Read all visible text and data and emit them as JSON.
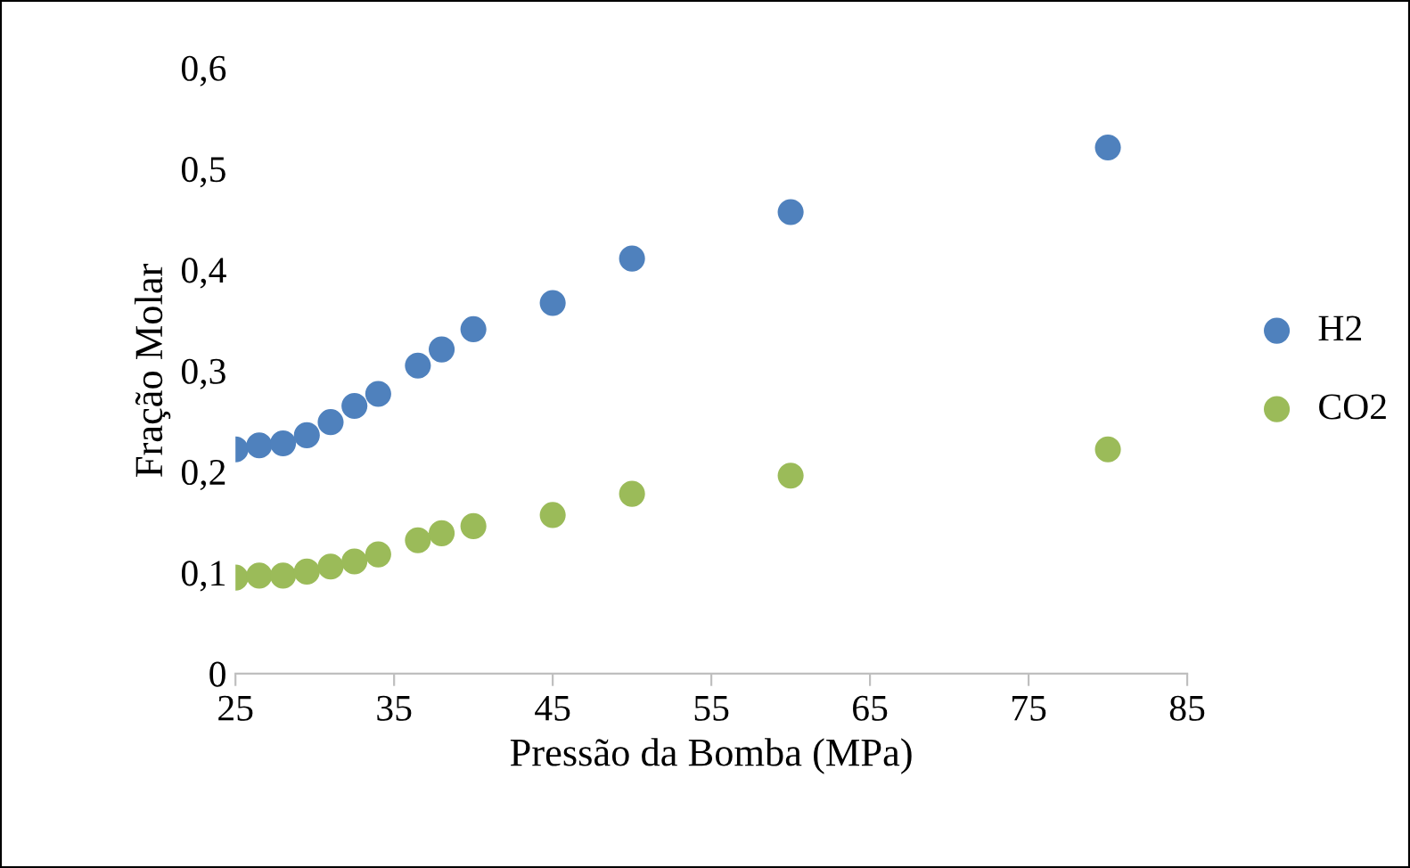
{
  "chart_data": {
    "type": "scatter",
    "xlabel": "Pressão da Bomba (MPa)",
    "ylabel": "Fração Molar",
    "x": [
      25,
      26.5,
      28,
      29.5,
      31,
      32.5,
      34,
      36.5,
      38,
      40,
      45,
      50,
      60,
      80
    ],
    "series": [
      {
        "name": "H2",
        "color": "#4f81bd",
        "values": [
          0.222,
          0.226,
          0.228,
          0.236,
          0.249,
          0.265,
          0.277,
          0.305,
          0.321,
          0.341,
          0.367,
          0.411,
          0.457,
          0.521
        ]
      },
      {
        "name": "CO2",
        "color": "#9bbb59",
        "values": [
          0.095,
          0.097,
          0.097,
          0.101,
          0.106,
          0.111,
          0.118,
          0.132,
          0.139,
          0.146,
          0.157,
          0.178,
          0.196,
          0.222
        ]
      }
    ],
    "xlim": [
      25,
      85
    ],
    "xticks": [
      25,
      35,
      45,
      55,
      65,
      75,
      85
    ],
    "ylim": [
      0,
      0.6
    ],
    "yticks": [
      {
        "value": 0,
        "label": "0"
      },
      {
        "value": 0.1,
        "label": "0,1"
      },
      {
        "value": 0.2,
        "label": "0,2"
      },
      {
        "value": 0.3,
        "label": "0,3"
      },
      {
        "value": 0.4,
        "label": "0,4"
      },
      {
        "value": 0.5,
        "label": "0,5"
      },
      {
        "value": 0.6,
        "label": "0,6"
      }
    ],
    "grid": false,
    "legend": "right",
    "marker": "circle"
  }
}
